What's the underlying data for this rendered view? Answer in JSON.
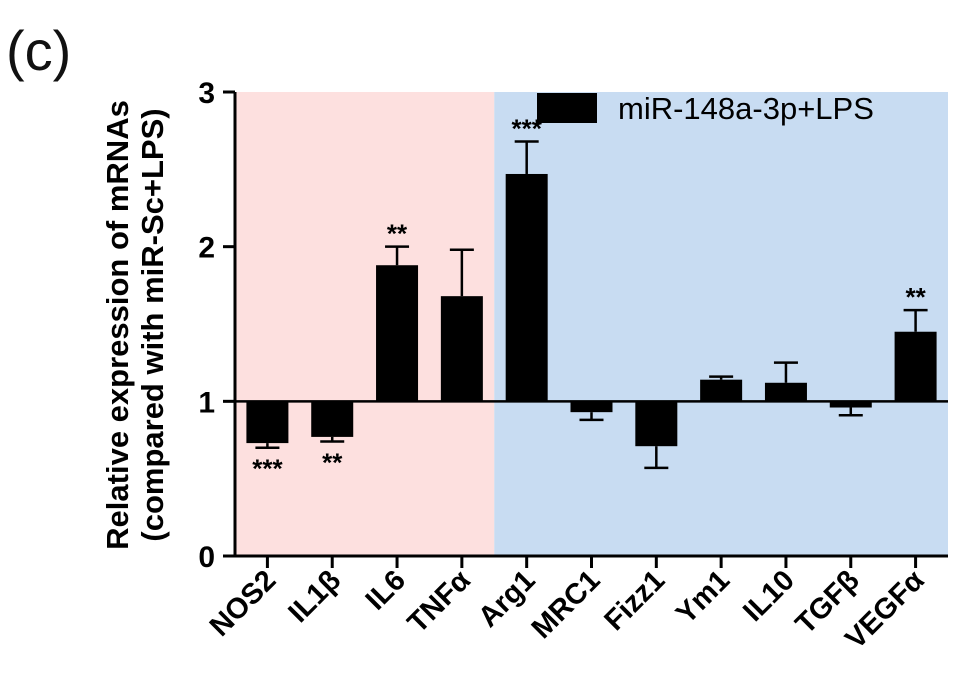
{
  "panel_label": "(c)",
  "chart_data": {
    "type": "bar",
    "title": "",
    "xlabel": "",
    "ylabel": "Relative expression of mRNAs",
    "ylabel_sub": "(compared with miR-Sc+LPS)",
    "ylim": [
      0,
      3
    ],
    "yticks": [
      0,
      1,
      2,
      3
    ],
    "baseline": 1,
    "grid": false,
    "legend": {
      "position": "top-right",
      "entries": [
        "miR-148a-3p+LPS"
      ]
    },
    "categories": [
      "NOS2",
      "IL1β",
      "IL6",
      "TNFα",
      "Arg1",
      "MRC1",
      "Fizz1",
      "Ym1",
      "IL10",
      "TGFβ",
      "VEGFα"
    ],
    "series": [
      {
        "name": "miR-148a-3p+LPS",
        "color": "#000000",
        "values": [
          0.73,
          0.77,
          1.88,
          1.68,
          2.47,
          0.93,
          0.71,
          1.14,
          1.12,
          0.96,
          1.45
        ],
        "errors": [
          0.03,
          0.03,
          0.12,
          0.3,
          0.21,
          0.05,
          0.14,
          0.02,
          0.13,
          0.05,
          0.14
        ]
      }
    ],
    "significance": [
      "***",
      "**",
      "**",
      "",
      "***",
      "",
      "",
      "",
      "",
      "",
      "**"
    ],
    "regions": [
      {
        "from": "NOS2",
        "to": "TNFα",
        "color": "#fde0df"
      },
      {
        "from": "Arg1",
        "to": "VEGFα",
        "color": "#c8dcf2"
      }
    ]
  }
}
